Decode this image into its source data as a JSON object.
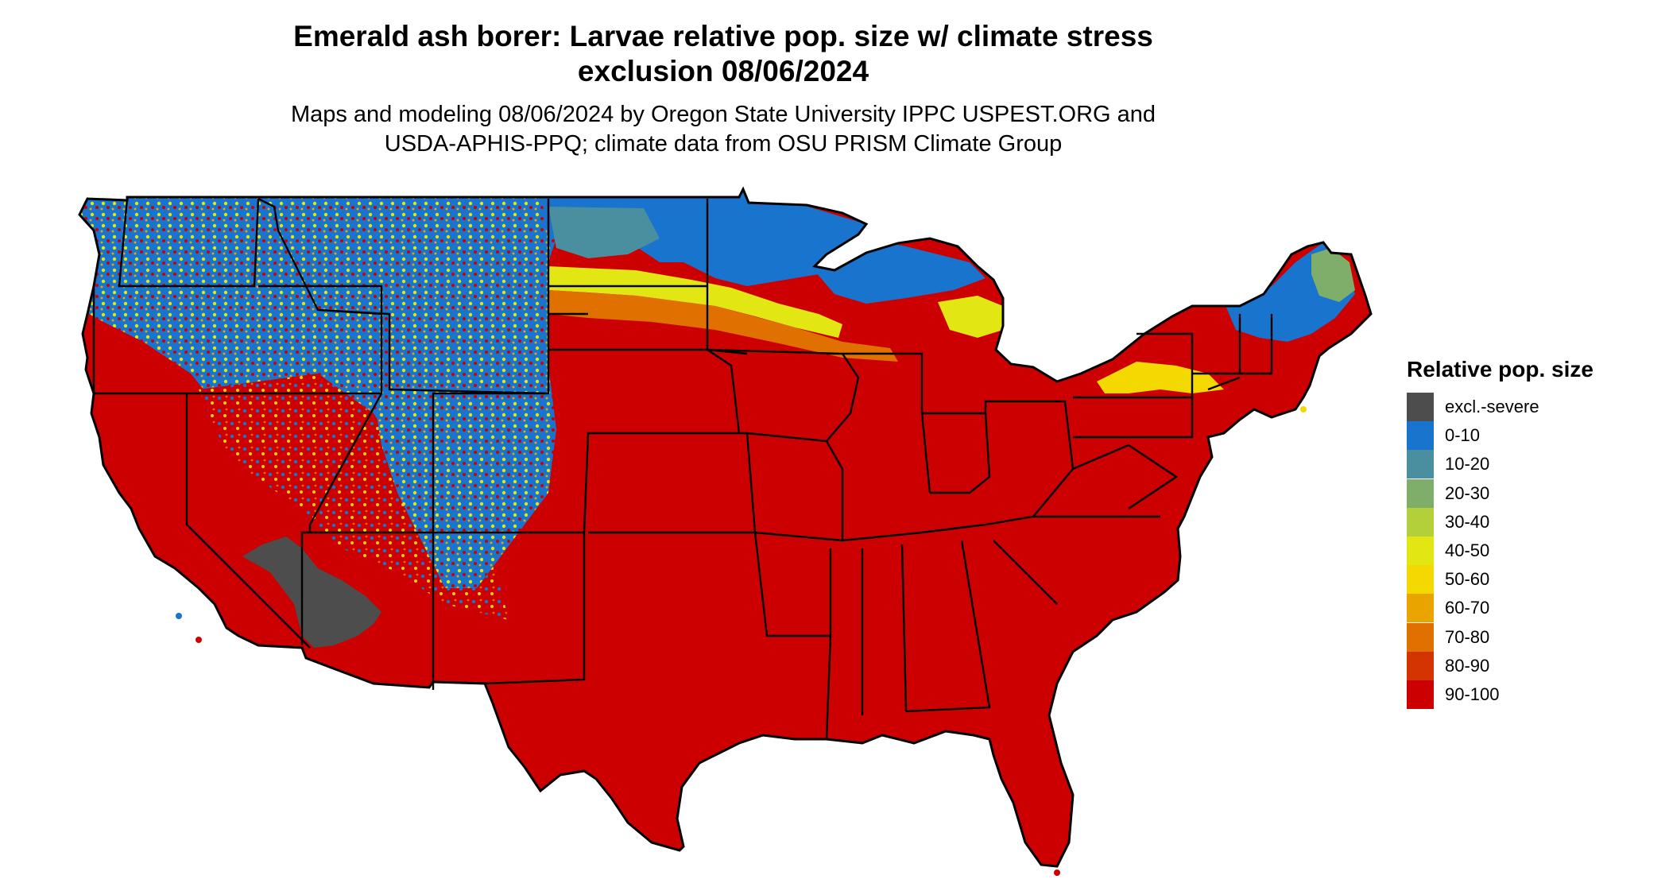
{
  "title": {
    "line1": "Emerald ash borer: Larvae relative pop. size w/ climate stress",
    "line2": "exclusion 08/06/2024"
  },
  "subtitle": {
    "line1": "Maps and modeling 08/06/2024 by Oregon State University IPPC USPEST.ORG and",
    "line2": "USDA-APHIS-PPQ; climate data from OSU PRISM Climate Group"
  },
  "legend": {
    "title": "Relative pop. size",
    "items": [
      {
        "label": "excl.-severe",
        "color": "#4d4d4d"
      },
      {
        "label": "0-10",
        "color": "#1874cd"
      },
      {
        "label": "10-20",
        "color": "#4a8fa0"
      },
      {
        "label": "20-30",
        "color": "#7fae6b"
      },
      {
        "label": "30-40",
        "color": "#b3cf3a"
      },
      {
        "label": "40-50",
        "color": "#e2e714"
      },
      {
        "label": "50-60",
        "color": "#f4d900"
      },
      {
        "label": "60-70",
        "color": "#eaa400"
      },
      {
        "label": "70-80",
        "color": "#e07000"
      },
      {
        "label": "80-90",
        "color": "#d43500"
      },
      {
        "label": "90-100",
        "color": "#cc0000"
      }
    ]
  },
  "map": {
    "subject": "Contiguous United States with state boundaries",
    "ocean_background": "#ffffff",
    "boundary_color": "#000000"
  }
}
